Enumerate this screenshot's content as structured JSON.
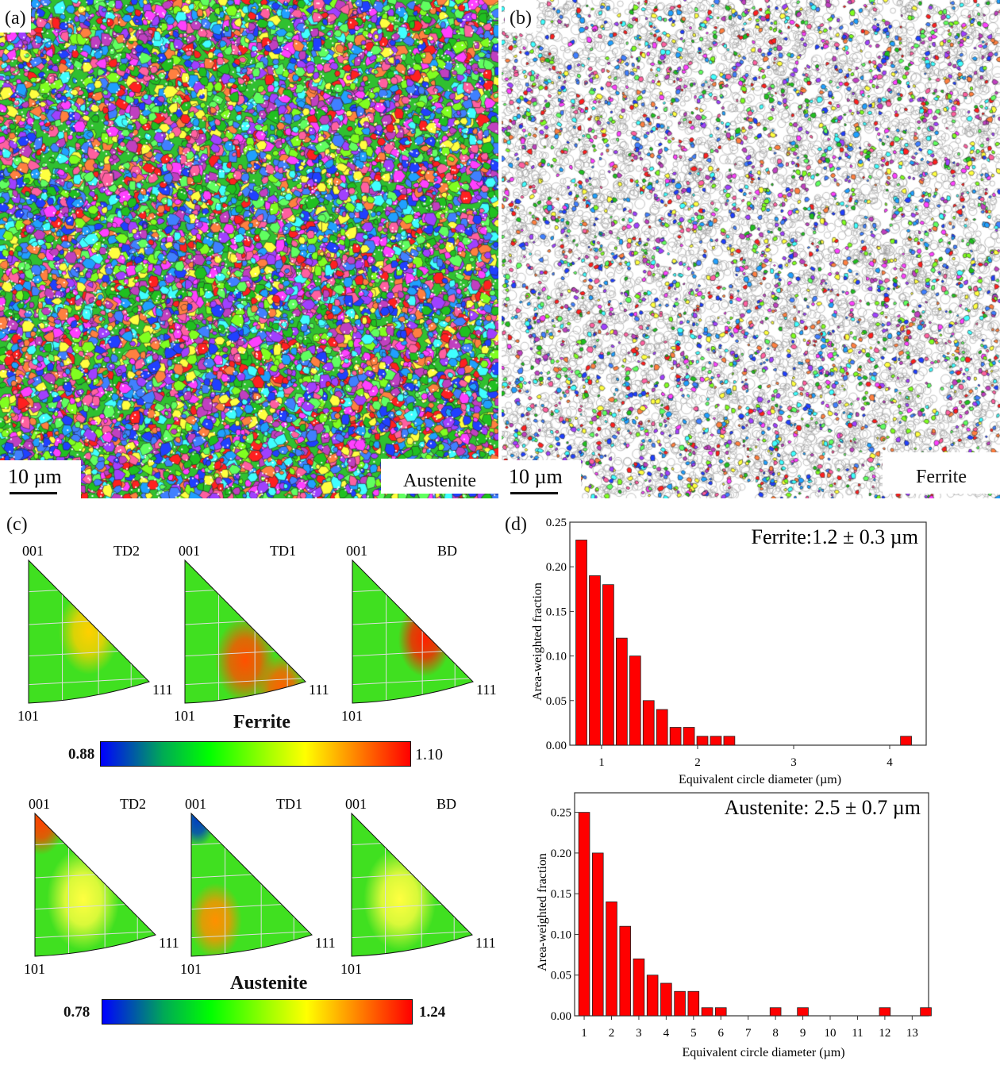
{
  "panels": {
    "a": {
      "label": "(a)",
      "scale": "10 µm",
      "phase": "Austenite"
    },
    "b": {
      "label": "(b)",
      "scale": "10 µm",
      "phase": "Ferrite"
    },
    "c": {
      "label": "(c)"
    },
    "d": {
      "label": "(d)"
    }
  },
  "ipf": {
    "corners": {
      "c001": "001",
      "c101": "101",
      "c111": "111"
    },
    "directions": [
      "TD2",
      "TD1",
      "BD"
    ],
    "ferrite": {
      "title": "Ferrite",
      "min": "0.88",
      "max": "1.10"
    },
    "austenite": {
      "title": "Austenite",
      "min": "0.78",
      "max": "1.24"
    }
  },
  "colors": {
    "bar": "#ff0000",
    "colormap": [
      "#0000ff",
      "#00ff00",
      "#ffff00",
      "#ff0000"
    ]
  },
  "chart_data": [
    {
      "type": "bar",
      "title": "Ferrite:1.2 ± 0.3 µm",
      "xlabel": "Equivalent circle diameter (µm)",
      "ylabel": "Area-weighted fraction",
      "xlim": [
        0.67,
        4.38
      ],
      "ylim": [
        0,
        0.25
      ],
      "bar_width": 0.115,
      "xticks": [
        1,
        2,
        3,
        4
      ],
      "yticks": [
        "0.00",
        "0.05",
        "0.10",
        "0.15",
        "0.20",
        "0.25"
      ],
      "x": [
        0.79,
        0.93,
        1.07,
        1.21,
        1.35,
        1.49,
        1.63,
        1.77,
        1.91,
        2.05,
        2.19,
        2.33,
        4.17
      ],
      "values": [
        0.23,
        0.19,
        0.18,
        0.12,
        0.1,
        0.05,
        0.04,
        0.02,
        0.02,
        0.01,
        0.01,
        0.01,
        0.01
      ]
    },
    {
      "type": "bar",
      "title": "Austenite: 2.5 ± 0.7 µm",
      "xlabel": "Equivalent circle diameter (µm)",
      "ylabel": "Area-weighted fraction",
      "xlim": [
        0.65,
        13.6
      ],
      "ylim": [
        0,
        0.274
      ],
      "bar_width": 0.4,
      "xticks": [
        1,
        2,
        3,
        4,
        5,
        6,
        7,
        8,
        9,
        10,
        11,
        12,
        13
      ],
      "yticks": [
        "0.00",
        "0.05",
        "0.10",
        "0.15",
        "0.20",
        "0.25"
      ],
      "x": [
        1,
        1.5,
        2,
        2.5,
        3,
        3.5,
        4,
        4.5,
        5,
        5.5,
        6,
        8,
        9,
        12,
        13.5
      ],
      "values": [
        0.25,
        0.2,
        0.14,
        0.11,
        0.07,
        0.05,
        0.04,
        0.03,
        0.03,
        0.01,
        0.01,
        0.01,
        0.01,
        0.01,
        0.01
      ]
    }
  ]
}
